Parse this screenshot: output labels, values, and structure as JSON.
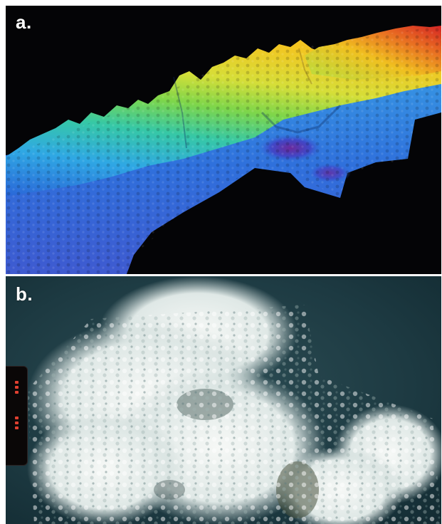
{
  "panels": {
    "a": {
      "label": "a.",
      "kind": "3d-bathymetry-rendering",
      "colormap": [
        "#7a2fa0",
        "#2f5fd6",
        "#2fb0e0",
        "#3fd080",
        "#b8e040",
        "#f0c020",
        "#e06020",
        "#d02020"
      ]
    },
    "b": {
      "label": "b.",
      "kind": "underwater-photo-white-coral-colony",
      "colors": {
        "water": "#1f3a42",
        "coral": "#eef2f0"
      }
    }
  }
}
